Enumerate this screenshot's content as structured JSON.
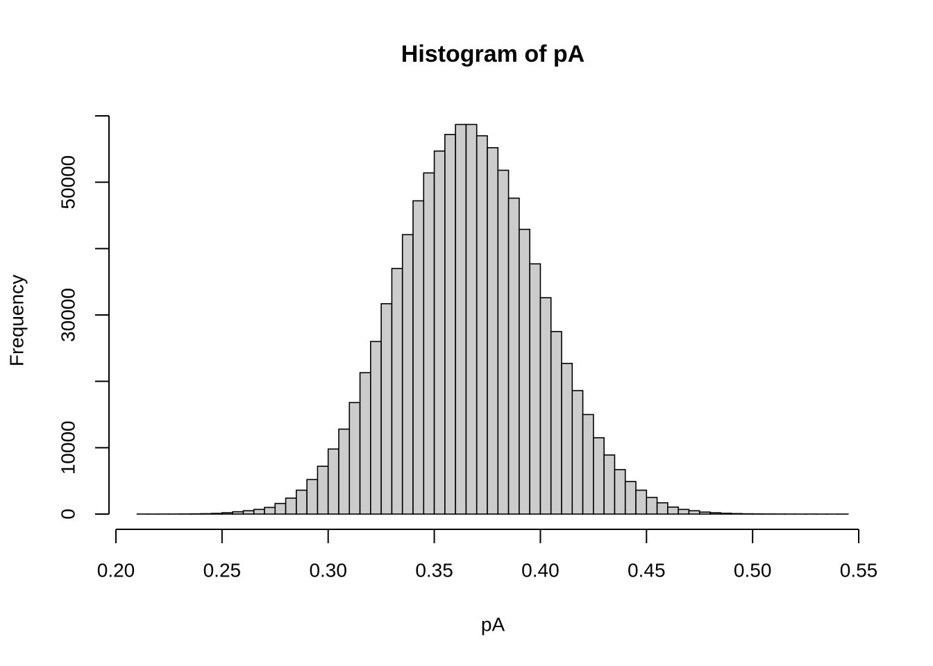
{
  "chart_data": {
    "type": "histogram",
    "title": "Histogram of pA",
    "xlabel": "pA",
    "ylabel": "Frequency",
    "bins": [
      0.21,
      0.215,
      0.22,
      0.225,
      0.23,
      0.235,
      0.24,
      0.245,
      0.25,
      0.255,
      0.26,
      0.265,
      0.27,
      0.275,
      0.28,
      0.285,
      0.29,
      0.295,
      0.3,
      0.305,
      0.31,
      0.315,
      0.32,
      0.325,
      0.33,
      0.335,
      0.34,
      0.345,
      0.35,
      0.355,
      0.36,
      0.365,
      0.37,
      0.375,
      0.38,
      0.385,
      0.39,
      0.395,
      0.4,
      0.405,
      0.41,
      0.415,
      0.42,
      0.425,
      0.43,
      0.435,
      0.44,
      0.445,
      0.45,
      0.455,
      0.46,
      0.465,
      0.47,
      0.475,
      0.48,
      0.485,
      0.49,
      0.495,
      0.5,
      0.505,
      0.51,
      0.515,
      0.52,
      0.525,
      0.53,
      0.535,
      0.54,
      0.545
    ],
    "counts": [
      1,
      2,
      4,
      8,
      15,
      30,
      55,
      100,
      200,
      350,
      500,
      700,
      1000,
      1600,
      2400,
      3600,
      5200,
      7200,
      9800,
      12800,
      16800,
      21300,
      26000,
      31700,
      37000,
      42100,
      47200,
      51400,
      54700,
      57200,
      58700,
      58700,
      57000,
      55200,
      51800,
      47600,
      42900,
      37700,
      32600,
      27500,
      22700,
      18600,
      15000,
      11500,
      8900,
      6700,
      4900,
      3600,
      2500,
      1700,
      1050,
      700,
      500,
      300,
      200,
      120,
      70,
      40,
      25,
      15,
      8,
      5,
      3,
      2,
      1,
      1,
      1
    ],
    "color": "#cccccc",
    "xlim": [
      0.2,
      0.55
    ],
    "xticks": [
      {
        "value": 0.2,
        "label": "0.20"
      },
      {
        "value": 0.25,
        "label": "0.25"
      },
      {
        "value": 0.3,
        "label": "0.30"
      },
      {
        "value": 0.35,
        "label": "0.35"
      },
      {
        "value": 0.4,
        "label": "0.40"
      },
      {
        "value": 0.45,
        "label": "0.45"
      },
      {
        "value": 0.5,
        "label": "0.50"
      },
      {
        "value": 0.55,
        "label": "0.55"
      }
    ],
    "ylim": [
      0,
      60000
    ],
    "yticks": [
      0,
      10000,
      30000,
      50000
    ],
    "ytick_marks": [
      0,
      10000,
      20000,
      30000,
      40000,
      50000,
      60000
    ],
    "grid": false
  }
}
